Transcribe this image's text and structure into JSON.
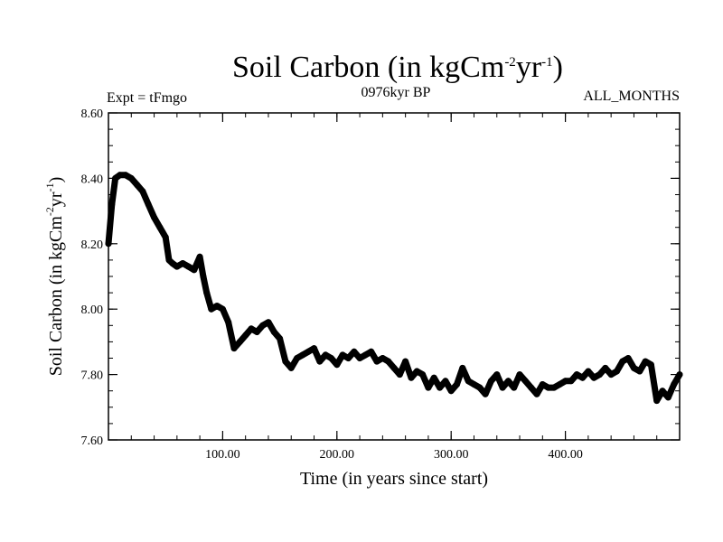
{
  "chart_data": {
    "type": "line",
    "title": "Soil Carbon (in kgCm",
    "title_sup1": "-2",
    "title_mid": "yr",
    "title_sup2": "-1",
    "title_end": ")",
    "subtitle_left": "Expt = tFmgo",
    "subtitle_center": "0976kyr BP",
    "subtitle_right": "ALL_MONTHS",
    "xlabel": "Time (in years since start)",
    "ylabel": "Soil Carbon (in kgCm",
    "ylabel_sup1": "-2",
    "ylabel_mid": "yr",
    "ylabel_sup2": "-1",
    "ylabel_end": ")",
    "xlim": [
      0,
      500
    ],
    "ylim": [
      7.6,
      8.6
    ],
    "x_ticks": [
      100,
      200,
      300,
      400
    ],
    "x_tick_labels": [
      "100.00",
      "200.00",
      "300.00",
      "400.00"
    ],
    "y_ticks": [
      7.6,
      7.8,
      8.0,
      8.2,
      8.4,
      8.6
    ],
    "y_tick_labels": [
      "7.60",
      "7.80",
      "8.00",
      "8.20",
      "8.40",
      "8.60"
    ],
    "series": [
      {
        "name": "Soil Carbon",
        "color": "#000000",
        "x": [
          0,
          3,
          6,
          10,
          15,
          20,
          25,
          30,
          35,
          40,
          45,
          50,
          53,
          56,
          60,
          65,
          70,
          75,
          80,
          83,
          86,
          90,
          95,
          100,
          105,
          110,
          115,
          120,
          125,
          130,
          135,
          140,
          145,
          150,
          155,
          160,
          165,
          170,
          175,
          180,
          185,
          190,
          195,
          200,
          205,
          210,
          215,
          220,
          225,
          230,
          235,
          240,
          245,
          250,
          255,
          260,
          265,
          270,
          275,
          280,
          285,
          290,
          295,
          300,
          305,
          310,
          315,
          320,
          325,
          330,
          335,
          340,
          345,
          350,
          355,
          360,
          365,
          370,
          375,
          380,
          385,
          390,
          395,
          400,
          405,
          410,
          415,
          420,
          425,
          430,
          435,
          440,
          445,
          450,
          455,
          460,
          465,
          470,
          475,
          480,
          485,
          490,
          495,
          500
        ],
        "y": [
          8.2,
          8.32,
          8.4,
          8.41,
          8.41,
          8.4,
          8.38,
          8.36,
          8.32,
          8.28,
          8.25,
          8.22,
          8.15,
          8.14,
          8.13,
          8.14,
          8.13,
          8.12,
          8.16,
          8.1,
          8.05,
          8.0,
          8.01,
          8.0,
          7.96,
          7.88,
          7.9,
          7.92,
          7.94,
          7.93,
          7.95,
          7.96,
          7.93,
          7.91,
          7.84,
          7.82,
          7.85,
          7.86,
          7.87,
          7.88,
          7.84,
          7.86,
          7.85,
          7.83,
          7.86,
          7.85,
          7.87,
          7.85,
          7.86,
          7.87,
          7.84,
          7.85,
          7.84,
          7.82,
          7.8,
          7.84,
          7.79,
          7.81,
          7.8,
          7.76,
          7.79,
          7.76,
          7.78,
          7.75,
          7.77,
          7.82,
          7.78,
          7.77,
          7.76,
          7.74,
          7.78,
          7.8,
          7.76,
          7.78,
          7.76,
          7.8,
          7.78,
          7.76,
          7.74,
          7.77,
          7.76,
          7.76,
          7.77,
          7.78,
          7.78,
          7.8,
          7.79,
          7.81,
          7.79,
          7.8,
          7.82,
          7.8,
          7.81,
          7.84,
          7.85,
          7.82,
          7.81,
          7.84,
          7.83,
          7.72,
          7.75,
          7.73,
          7.77,
          7.8
        ]
      }
    ]
  }
}
